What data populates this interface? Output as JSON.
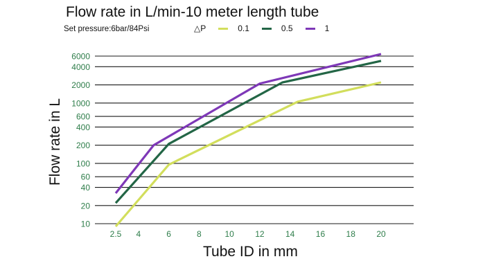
{
  "chart_data": {
    "type": "line",
    "title": "Flow rate in L/min-10 meter length tube",
    "subtitle": "Set pressure:6bar/84Psi",
    "xlabel": "Tube ID in mm",
    "ylabel": "Flow rate in L",
    "legend_title": "△P",
    "legend_placement": "top",
    "grid": "horizontal",
    "y_scale": "log",
    "ylim": [
      10,
      6000
    ],
    "xlim": [
      2.5,
      20
    ],
    "x_ticks": [
      "2.5",
      "4",
      "6",
      "8",
      "10",
      "12",
      "14",
      "16",
      "18",
      "20"
    ],
    "y_ticks": [
      "10",
      "20",
      "40",
      "60",
      "100",
      "200",
      "400",
      "600",
      "1000",
      "2000",
      "4000",
      "6000"
    ],
    "x_tick_color": "#2e7d4a",
    "y_tick_color": "#2e7d4a",
    "series": [
      {
        "name": "0.1",
        "color": "#d2de5c",
        "x": [
          2.5,
          6,
          14.5,
          20
        ],
        "y": [
          9,
          95,
          1050,
          2200
        ]
      },
      {
        "name": "0.5",
        "color": "#236646",
        "x": [
          2.5,
          6,
          13.5,
          20
        ],
        "y": [
          22,
          210,
          2200,
          5000
        ]
      },
      {
        "name": "1",
        "color": "#7e38b7",
        "x": [
          2.5,
          5,
          12,
          20
        ],
        "y": [
          32,
          200,
          2100,
          6500
        ]
      }
    ]
  }
}
